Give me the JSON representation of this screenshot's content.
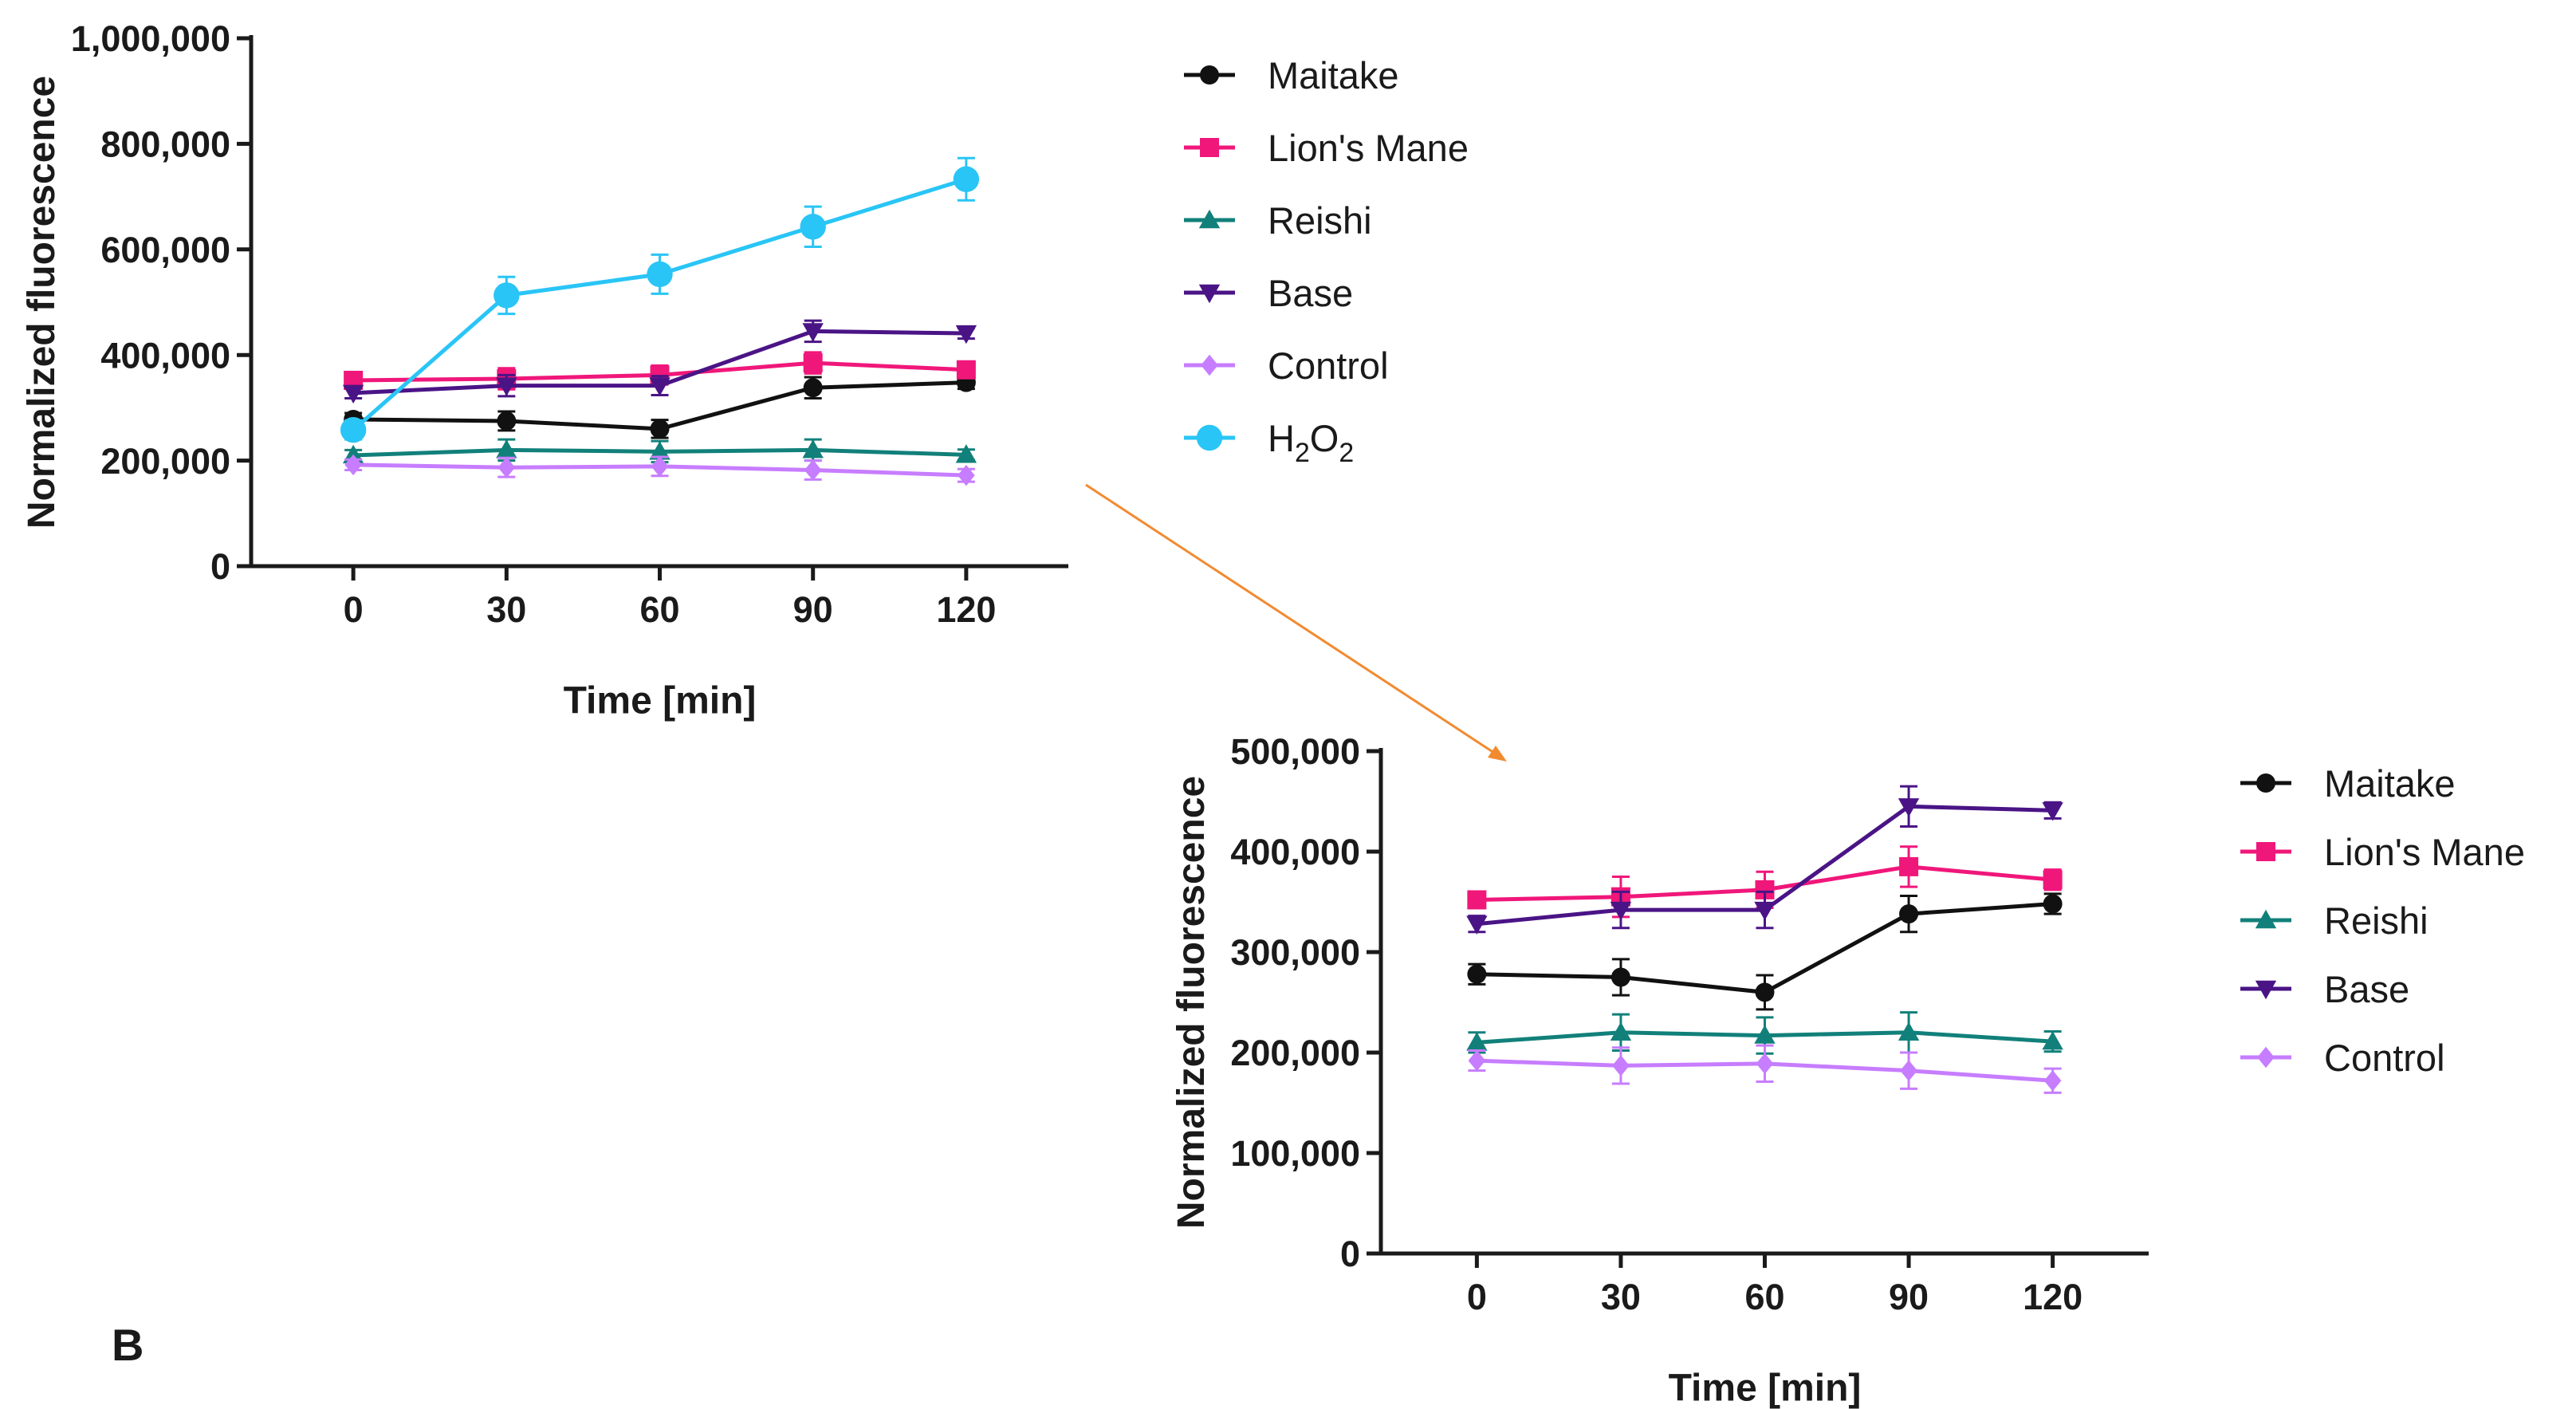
{
  "panel_label": "B",
  "colors": {
    "axis": "#1a1a1a",
    "arrow": "#f28a30"
  },
  "chart_data": [
    {
      "type": "line",
      "name": "full",
      "xlabel": "Time [min]",
      "ylabel": "Normalized fluorescence",
      "x": [
        0,
        30,
        60,
        90,
        120
      ],
      "xlim": [
        -20,
        140
      ],
      "ylim": [
        0,
        1000000
      ],
      "yticks": [
        0,
        200000,
        400000,
        600000,
        800000,
        1000000
      ],
      "ytick_labels": [
        "0",
        "200,000",
        "400,000",
        "600,000",
        "800,000",
        "1,000,000"
      ],
      "xtick_labels": [
        "0",
        "30",
        "60",
        "90",
        "120"
      ],
      "legend_position": "right",
      "series": [
        {
          "name": "Maitake",
          "color": "#111111",
          "marker": "circle",
          "values": [
            278000,
            275000,
            260000,
            338000,
            348000
          ],
          "errors": [
            12000,
            18000,
            17000,
            20000,
            12000
          ]
        },
        {
          "name": "Lion's Mane",
          "color": "#f0177a",
          "marker": "square",
          "values": [
            352000,
            355000,
            362000,
            385000,
            372000
          ],
          "errors": [
            10000,
            20000,
            18000,
            20000,
            12000
          ]
        },
        {
          "name": "Reishi",
          "color": "#12807a",
          "marker": "triangle-up",
          "values": [
            210000,
            220000,
            217000,
            220000,
            211000
          ],
          "errors": [
            10000,
            20000,
            20000,
            20000,
            10000
          ]
        },
        {
          "name": "Base",
          "color": "#4a1486",
          "marker": "triangle-down",
          "values": [
            328000,
            342000,
            342000,
            445000,
            441000
          ],
          "errors": [
            10000,
            20000,
            18000,
            20000,
            10000
          ]
        },
        {
          "name": "Control",
          "color": "#c77dff",
          "marker": "diamond",
          "values": [
            192000,
            187000,
            189000,
            182000,
            172000
          ],
          "errors": [
            10000,
            18000,
            18000,
            18000,
            12000
          ]
        },
        {
          "name": "H2O2",
          "color": "#29c5f6",
          "marker": "circle-large",
          "values": [
            258000,
            513000,
            553000,
            643000,
            733000
          ],
          "errors": [
            18000,
            35000,
            37000,
            38000,
            40000
          ]
        }
      ]
    },
    {
      "type": "line",
      "name": "zoom",
      "xlabel": "Time [min]",
      "ylabel": "Normalized fluorescence",
      "x": [
        0,
        30,
        60,
        90,
        120
      ],
      "xlim": [
        -20,
        140
      ],
      "ylim": [
        0,
        500000
      ],
      "yticks": [
        0,
        100000,
        200000,
        300000,
        400000,
        500000
      ],
      "ytick_labels": [
        "0",
        "100,000",
        "200,000",
        "300,000",
        "400,000",
        "500,000"
      ],
      "xtick_labels": [
        "0",
        "30",
        "60",
        "90",
        "120"
      ],
      "legend_position": "right",
      "series": [
        {
          "name": "Maitake",
          "color": "#111111",
          "marker": "circle",
          "values": [
            278000,
            275000,
            260000,
            338000,
            348000
          ],
          "errors": [
            10000,
            18000,
            17000,
            18000,
            10000
          ]
        },
        {
          "name": "Lion's Mane",
          "color": "#f0177a",
          "marker": "square",
          "values": [
            352000,
            355000,
            362000,
            385000,
            372000
          ],
          "errors": [
            8000,
            20000,
            18000,
            20000,
            10000
          ]
        },
        {
          "name": "Reishi",
          "color": "#12807a",
          "marker": "triangle-up",
          "values": [
            210000,
            220000,
            217000,
            220000,
            211000
          ],
          "errors": [
            10000,
            18000,
            18000,
            20000,
            10000
          ]
        },
        {
          "name": "Base",
          "color": "#4a1486",
          "marker": "triangle-down",
          "values": [
            328000,
            342000,
            342000,
            445000,
            441000
          ],
          "errors": [
            8000,
            18000,
            18000,
            20000,
            8000
          ]
        },
        {
          "name": "Control",
          "color": "#c77dff",
          "marker": "diamond",
          "values": [
            192000,
            187000,
            189000,
            182000,
            172000
          ],
          "errors": [
            10000,
            18000,
            18000,
            18000,
            12000
          ]
        }
      ]
    }
  ]
}
